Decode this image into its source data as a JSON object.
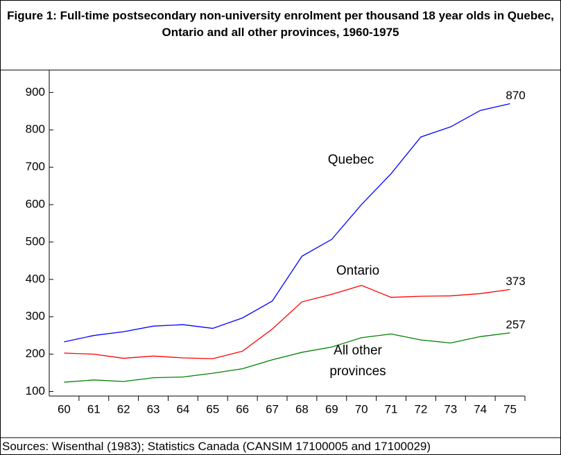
{
  "chart_data": {
    "type": "line",
    "title": "Figure 1: Full-time postsecondary non-university enrolment per thousand 18 year olds in Quebec, Ontario and all other provinces, 1960-1975",
    "source": "Sources: Wisenthal (1983); Statistics Canada (CANSIM 17100005 and 17100029)",
    "categories": [
      "60",
      "61",
      "62",
      "63",
      "64",
      "65",
      "66",
      "67",
      "68",
      "69",
      "70",
      "71",
      "72",
      "73",
      "74",
      "75"
    ],
    "series": [
      {
        "name": "Quebec",
        "color": "#0000ff",
        "values": [
          233,
          250,
          260,
          275,
          279,
          269,
          297,
          342,
          462,
          507,
          600,
          683,
          781,
          808,
          852,
          870
        ]
      },
      {
        "name": "Ontario",
        "color": "#ff0000",
        "values": [
          203,
          200,
          189,
          195,
          190,
          188,
          208,
          267,
          340,
          360,
          384,
          352,
          355,
          356,
          362,
          373
        ]
      },
      {
        "name": "All other provinces",
        "color": "#008000",
        "values": [
          125,
          131,
          127,
          137,
          139,
          149,
          161,
          185,
          205,
          219,
          244,
          254,
          238,
          230,
          247,
          257
        ]
      }
    ],
    "ylim": [
      88,
      960
    ],
    "yticks": [
      100,
      200,
      300,
      400,
      500,
      600,
      700,
      800,
      900
    ]
  }
}
